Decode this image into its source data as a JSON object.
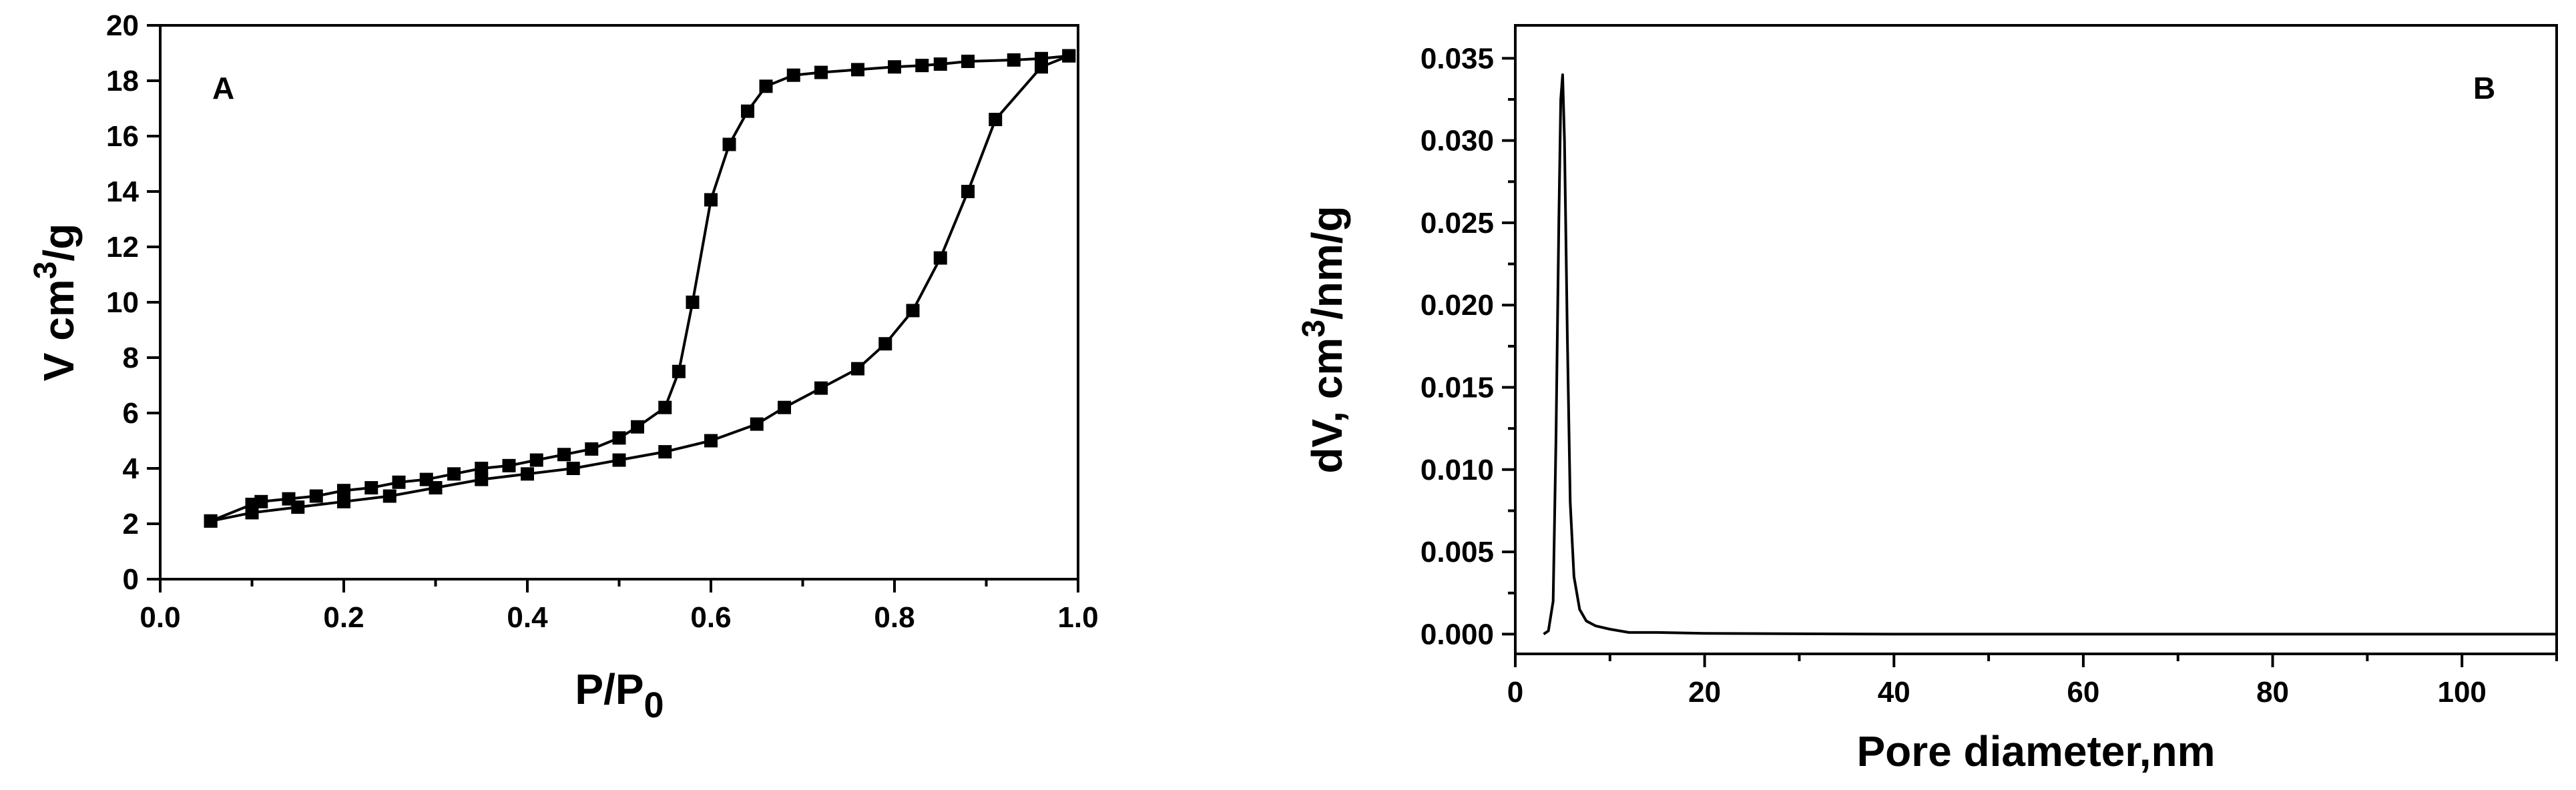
{
  "chart_data": [
    {
      "type": "scatter",
      "panel_label": "A",
      "xlabel": "P/P",
      "xlabel_sub": "0",
      "ylabel_prefix": "V cm",
      "ylabel_sup": "3",
      "ylabel_suffix": "/g",
      "xlim": [
        0.0,
        1.0
      ],
      "ylim": [
        0,
        20
      ],
      "xticks": [
        "0.0",
        "0.2",
        "0.4",
        "0.6",
        "0.8",
        "1.0"
      ],
      "yticks": [
        "0",
        "2",
        "4",
        "6",
        "8",
        "10",
        "12",
        "14",
        "16",
        "18",
        "20"
      ],
      "series": [
        {
          "x": [
            0.055,
            0.1,
            0.15,
            0.2,
            0.25,
            0.3,
            0.35,
            0.4,
            0.45,
            0.5,
            0.55,
            0.6,
            0.65,
            0.68,
            0.72,
            0.76,
            0.79,
            0.82,
            0.85,
            0.88,
            0.91,
            0.96,
            0.99
          ],
          "y": [
            2.1,
            2.4,
            2.6,
            2.8,
            3.0,
            3.3,
            3.6,
            3.8,
            4.0,
            4.3,
            4.6,
            5.0,
            5.6,
            6.2,
            6.9,
            7.6,
            8.5,
            9.7,
            11.6,
            14.0,
            16.6,
            18.5,
            18.9
          ]
        },
        {
          "x": [
            0.99,
            0.96,
            0.93,
            0.88,
            0.85,
            0.83,
            0.8,
            0.76,
            0.72,
            0.69,
            0.66,
            0.64,
            0.62,
            0.6,
            0.58,
            0.565,
            0.55,
            0.52,
            0.5,
            0.47,
            0.44,
            0.41,
            0.38,
            0.35,
            0.32,
            0.29,
            0.26,
            0.23,
            0.2,
            0.17,
            0.14,
            0.11,
            0.1,
            0.055
          ],
          "y": [
            18.9,
            18.8,
            18.75,
            18.7,
            18.6,
            18.55,
            18.5,
            18.4,
            18.3,
            18.2,
            17.8,
            16.9,
            15.7,
            13.7,
            10.0,
            7.5,
            6.2,
            5.5,
            5.1,
            4.7,
            4.5,
            4.3,
            4.1,
            4.0,
            3.8,
            3.6,
            3.5,
            3.3,
            3.2,
            3.0,
            2.9,
            2.8,
            2.7,
            2.1
          ]
        }
      ]
    },
    {
      "type": "line",
      "panel_label": "B",
      "xlabel": "Pore diameter,nm",
      "ylabel_prefix": "dV, cm",
      "ylabel_sup": "3",
      "ylabel_suffix": "/nm/g",
      "xlim": [
        0,
        110
      ],
      "ylim": [
        -0.0012,
        0.037
      ],
      "xticks": [
        "0",
        "20",
        "40",
        "60",
        "80",
        "100"
      ],
      "yticks": [
        "0.000",
        "0.005",
        "0.010",
        "0.015",
        "0.020",
        "0.025",
        "0.030",
        "0.035"
      ],
      "series": [
        {
          "x": [
            3.0,
            3.5,
            4.0,
            4.3,
            4.6,
            4.8,
            5.0,
            5.2,
            5.5,
            5.8,
            6.2,
            6.8,
            7.5,
            8.5,
            10,
            12,
            15,
            20,
            30,
            40,
            60,
            80,
            100,
            110
          ],
          "y": [
            0.0,
            0.0002,
            0.002,
            0.012,
            0.025,
            0.0325,
            0.034,
            0.03,
            0.018,
            0.008,
            0.0035,
            0.0015,
            0.0008,
            0.0005,
            0.0003,
            0.0001,
            0.0001,
            5e-05,
            2e-05,
            0.0,
            0.0,
            0.0,
            0.0,
            0.0
          ]
        }
      ]
    }
  ]
}
